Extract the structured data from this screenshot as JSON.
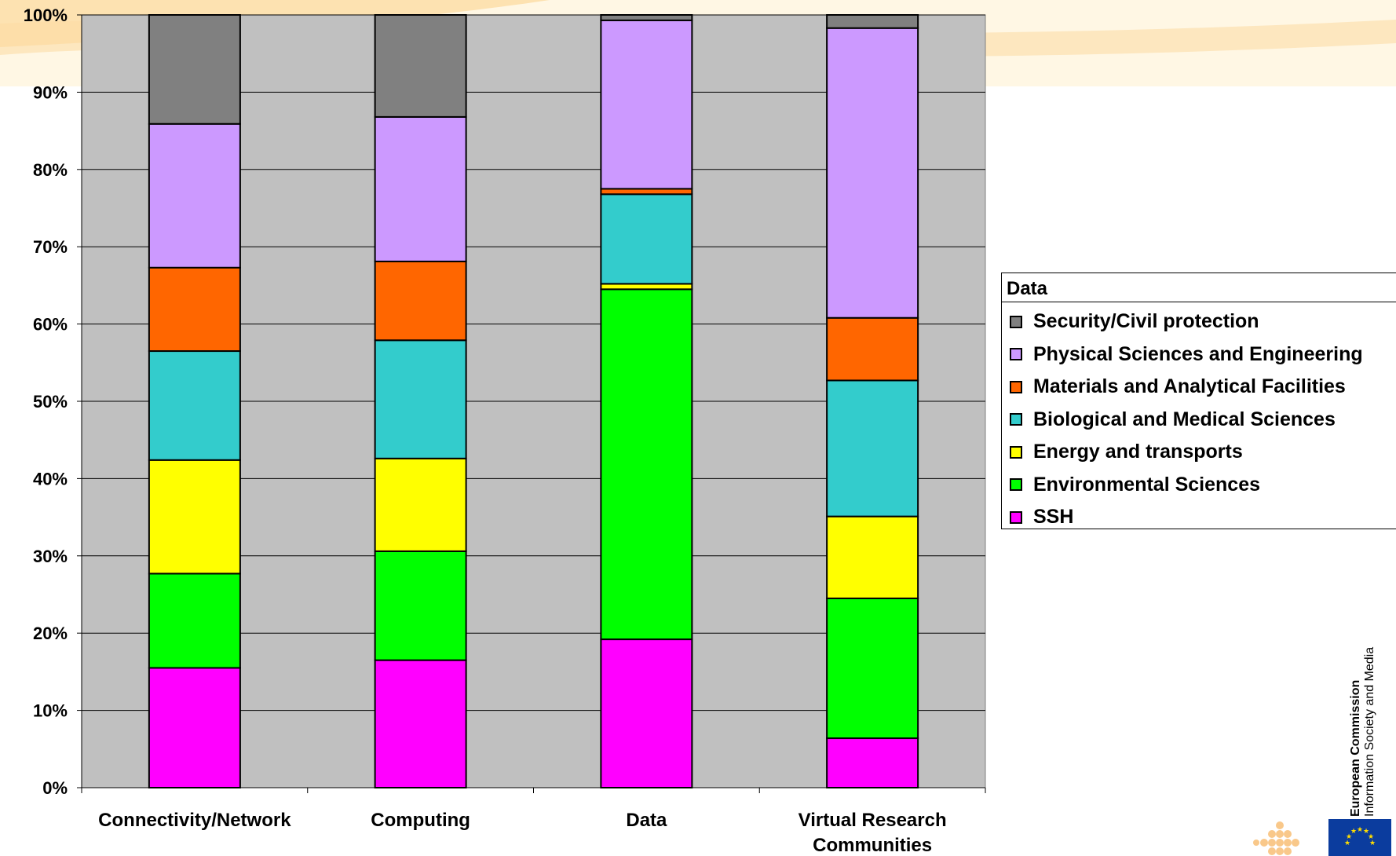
{
  "chart_data": {
    "type": "bar",
    "stacked": true,
    "percent_stacked": true,
    "categories": [
      "Connectivity/Network",
      "Computing",
      "Data",
      "Virtual Research Communities"
    ],
    "series": [
      {
        "name": "SSH",
        "color": "#ff00ff",
        "values": [
          15.5,
          16.5,
          19.2,
          6.4
        ]
      },
      {
        "name": "Environmental Sciences",
        "color": "#00ff00",
        "values": [
          12.2,
          14.1,
          45.3,
          18.1
        ]
      },
      {
        "name": "Energy and transports",
        "color": "#ffff00",
        "values": [
          14.7,
          12.0,
          0.7,
          10.6
        ]
      },
      {
        "name": "Biological and Medical Sciences",
        "color": "#33cccc",
        "values": [
          14.1,
          15.3,
          11.6,
          17.6
        ]
      },
      {
        "name": "Materials and Analytical Facilities",
        "color": "#ff6600",
        "values": [
          10.8,
          10.2,
          0.7,
          8.1
        ]
      },
      {
        "name": "Physical Sciences and Engineering",
        "color": "#cc99ff",
        "values": [
          18.6,
          18.7,
          21.8,
          37.5
        ]
      },
      {
        "name": "Security/Civil protection",
        "color": "#808080",
        "values": [
          14.1,
          13.2,
          0.7,
          1.7
        ]
      }
    ],
    "ylim": [
      0,
      100
    ],
    "yticks": [
      "0%",
      "10%",
      "20%",
      "30%",
      "40%",
      "50%",
      "60%",
      "70%",
      "80%",
      "90%",
      "100%"
    ],
    "grid": true,
    "plot_background": "#c0c0c0",
    "legend_position": "right",
    "legend_title": "Data",
    "xlabel": "",
    "ylabel": ""
  },
  "branding": {
    "org_name": "European Commission",
    "dept_name": "Information Society and Media"
  }
}
